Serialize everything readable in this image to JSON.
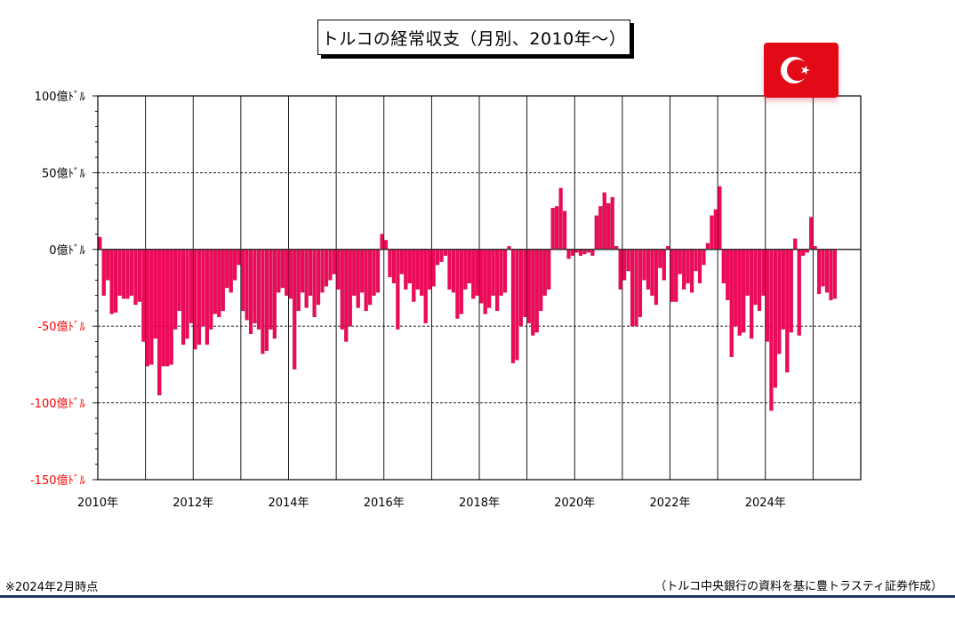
{
  "chart_data": {
    "type": "bar",
    "title": "トルコの経常収支（月別、2010年～）",
    "unit": "億ﾄﾞﾙ",
    "ylim": [
      -150,
      100
    ],
    "yticks": [
      {
        "value": 100,
        "label": "100億ﾄﾞﾙ",
        "color": "#000000"
      },
      {
        "value": 50,
        "label": "50億ﾄﾞﾙ",
        "color": "#000000"
      },
      {
        "value": 0,
        "label": "0億ﾄﾞﾙ",
        "color": "#000000"
      },
      {
        "value": -50,
        "label": "-50億ﾄﾞﾙ",
        "color": "#ff0000"
      },
      {
        "value": -100,
        "label": "-100億ﾄﾞﾙ",
        "color": "#ff0000"
      },
      {
        "value": -150,
        "label": "-150億ﾄﾞﾙ",
        "color": "#ff0000"
      }
    ],
    "xticks": [
      "2010年",
      "2012年",
      "2014年",
      "2016年",
      "2018年",
      "2020年",
      "2022年",
      "2024年"
    ],
    "x_start": "2010-01",
    "x_end": "2025-12",
    "grid": {
      "horizontal_dashed": [
        50,
        -50,
        -100
      ],
      "vertical_solid": "yearly"
    },
    "bar_color": "#f0085a",
    "series": [
      {
        "values": [
          8,
          -30,
          -20,
          -42,
          -41,
          -30,
          -32,
          -32,
          -30,
          -36,
          -34,
          -60,
          -76,
          -75,
          -58,
          -95,
          -76,
          -76,
          -75,
          -52,
          -40,
          -62,
          -58,
          -48,
          -65,
          -62,
          -50,
          -62,
          -52,
          -42,
          -44,
          -40,
          -25,
          -28,
          -20,
          -10,
          -40,
          -46,
          -55,
          -48,
          -52,
          -68,
          -66,
          -52,
          -58,
          -28,
          -25,
          -30,
          -32,
          -78,
          -40,
          -28,
          -38,
          -30,
          -44,
          -36,
          -28,
          -24,
          -20,
          -16,
          -26,
          -52,
          -60,
          -50,
          -30,
          -38,
          -28,
          -40,
          -36,
          -30,
          -28,
          10,
          6,
          -18,
          -22,
          -52,
          -16,
          -26,
          -22,
          -34,
          -26,
          -30,
          -48,
          -26,
          -24,
          -10,
          -8,
          -4,
          -26,
          -28,
          -45,
          -42,
          -26,
          -22,
          -32,
          -30,
          -35,
          -42,
          -38,
          -30,
          -40,
          -30,
          -28,
          2,
          -74,
          -72,
          -50,
          -44,
          -48,
          -56,
          -54,
          -40,
          -30,
          -26,
          27,
          28,
          40,
          25,
          -6,
          -4,
          -2,
          -4,
          -3,
          -2,
          -4,
          22,
          28,
          37,
          30,
          34,
          2,
          -26,
          -20,
          -14,
          -50,
          -50,
          -44,
          -20,
          -26,
          -30,
          -36,
          -12,
          -20,
          2,
          -34,
          -34,
          -16,
          -26,
          -22,
          -28,
          -14,
          -22,
          -10,
          4,
          22,
          26,
          41,
          -22,
          -33,
          -70,
          -50,
          -56,
          -54,
          -30,
          -58,
          -36,
          -40,
          -30,
          -60,
          -105,
          -90,
          -68,
          -52,
          -80,
          -54,
          7,
          -56,
          -4,
          -2,
          21,
          2,
          -29,
          -24,
          -28,
          -33,
          -32
        ]
      }
    ]
  },
  "flag": {
    "name": "トルコ国旗",
    "color": "#e30a17"
  },
  "notes": {
    "as_of": "※2024年2月時点",
    "source": "（トルコ中央銀行の資料を基に豊トラスティ証券作成）"
  }
}
